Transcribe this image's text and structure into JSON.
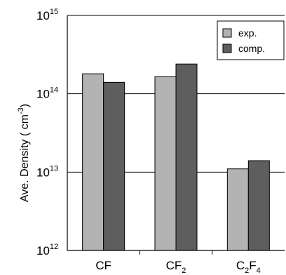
{
  "chart_data": {
    "type": "bar",
    "y_scale": "log",
    "ylim": [
      1000000000000.0,
      1000000000000000.0
    ],
    "ylabel": "Ave. Density ( cm",
    "ylabel_sup": "-3",
    "ylabel_close": ")",
    "y_ticks": [
      {
        "base": "10",
        "exp": "12",
        "value": 1000000000000.0
      },
      {
        "base": "10",
        "exp": "13",
        "value": 10000000000000.0
      },
      {
        "base": "10",
        "exp": "14",
        "value": 100000000000000.0
      },
      {
        "base": "10",
        "exp": "15",
        "value": 1000000000000000.0
      }
    ],
    "categories": [
      {
        "label": "CF",
        "parts": [
          {
            "t": "CF",
            "sub": false
          }
        ]
      },
      {
        "label": "CF2",
        "parts": [
          {
            "t": "CF",
            "sub": false
          },
          {
            "t": "2",
            "sub": true
          }
        ]
      },
      {
        "label": "C2F4",
        "parts": [
          {
            "t": "C",
            "sub": false
          },
          {
            "t": "2",
            "sub": true
          },
          {
            "t": "F",
            "sub": false
          },
          {
            "t": "4",
            "sub": true
          }
        ]
      }
    ],
    "series": [
      {
        "name": "exp.",
        "color": "#b3b3b3",
        "values": [
          180000000000000.0,
          165000000000000.0,
          11000000000000.0
        ]
      },
      {
        "name": "comp.",
        "color": "#5e5e5e",
        "values": [
          140000000000000.0,
          240000000000000.0,
          14000000000000.0
        ]
      }
    ],
    "gridlines": true,
    "legend_position": "top-right"
  }
}
